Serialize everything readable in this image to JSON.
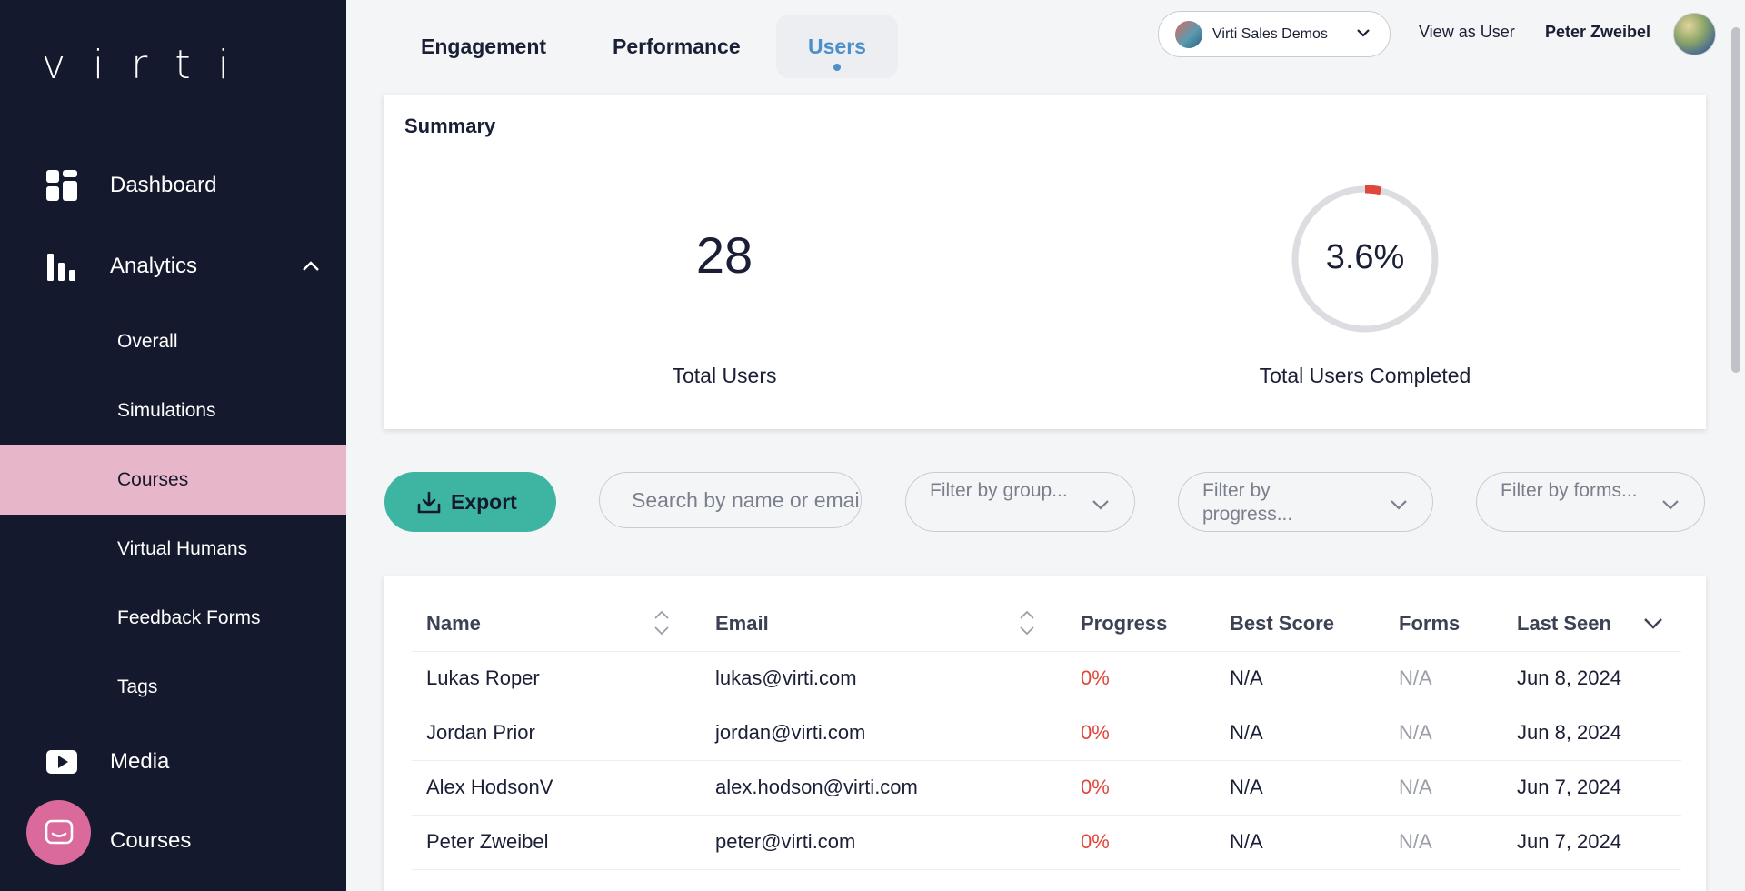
{
  "sidebar": {
    "logo": "virti",
    "dashboard": "Dashboard",
    "analytics": "Analytics",
    "sub_items": [
      "Overall",
      "Simulations",
      "Courses",
      "Virtual Humans",
      "Feedback Forms",
      "Tags"
    ],
    "active_sub": "Courses",
    "media": "Media",
    "courses": "Courses"
  },
  "topbar": {
    "tabs": [
      "Engagement",
      "Performance",
      "Users"
    ],
    "active_tab": "Users",
    "org_name": "Virti Sales Demos",
    "view_as": "View as User",
    "user_name": "Peter Zweibel"
  },
  "summary": {
    "title": "Summary",
    "total_users": "28",
    "total_users_label": "Total Users",
    "completed_percent": "3.6%",
    "completed_fraction": 0.036,
    "completed_label": "Total Users Completed"
  },
  "filters": {
    "export_label": "Export",
    "search_placeholder": "Search by name or email",
    "group": "Filter by group...",
    "progress": "Filter by progress...",
    "forms": "Filter by forms..."
  },
  "table": {
    "columns": [
      "Name",
      "Email",
      "Progress",
      "Best Score",
      "Forms",
      "Last Seen"
    ],
    "rows": [
      {
        "name": "Lukas Roper",
        "email": "lukas@virti.com",
        "progress": "0%",
        "best_score": "N/A",
        "forms": "N/A",
        "last_seen": "Jun 8, 2024"
      },
      {
        "name": "Jordan Prior",
        "email": "jordan@virti.com",
        "progress": "0%",
        "best_score": "N/A",
        "forms": "N/A",
        "last_seen": "Jun 8, 2024"
      },
      {
        "name": "Alex HodsonV",
        "email": "alex.hodson@virti.com",
        "progress": "0%",
        "best_score": "N/A",
        "forms": "N/A",
        "last_seen": "Jun 7, 2024"
      },
      {
        "name": "Peter Zweibel",
        "email": "peter@virti.com",
        "progress": "0%",
        "best_score": "N/A",
        "forms": "N/A",
        "last_seen": "Jun 7, 2024"
      }
    ]
  },
  "colors": {
    "sidebar_bg": "#14192d",
    "active_nav": "#e8b6c9",
    "accent_blue": "#4d8fc9",
    "export_green": "#3eb5a2",
    "progress_red": "#e0473c"
  }
}
